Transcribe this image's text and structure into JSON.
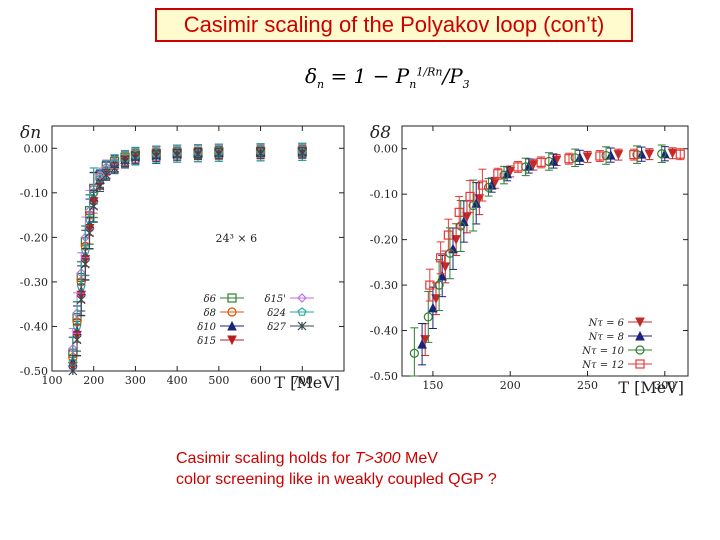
{
  "slide": {
    "title": "Casimir scaling of the Polyakov loop (con’t)",
    "formula": {
      "lhs": "δn",
      "text": "δ",
      "sub_n": "n",
      "eq": " = 1 − P",
      "sup": "1/Rn",
      "tail": "/P",
      "sub_3": "3"
    },
    "note_line1_prefix": "Casimir scaling holds for ",
    "note_line1_em": "T>300",
    "note_line1_suffix": " MeV",
    "note_line2": " color screening like in weakly coupled QGP ?"
  },
  "colors": {
    "title_red": "#cc0000",
    "title_bg": "#fffbcf"
  },
  "chart_data": [
    {
      "type": "scatter",
      "ylabel": "δn",
      "xlabel": "T [MeV]",
      "annotation": "24³ × 6",
      "xlim": [
        100,
        800
      ],
      "ylim": [
        -0.5,
        0.05
      ],
      "xticks": [
        100,
        200,
        300,
        400,
        500,
        600,
        700
      ],
      "xtick_labels": [
        "100",
        "200",
        "300",
        "400",
        "500",
        "600",
        "700"
      ],
      "yticks": [
        0.0,
        -0.1,
        -0.2,
        -0.3,
        -0.4,
        -0.5
      ],
      "ytick_labels": [
        "0.00",
        "-0.10",
        "-0.20",
        "-0.30",
        "-0.40",
        "-0.50"
      ],
      "legend_position": "bottom-right",
      "series": [
        {
          "name": "δ6",
          "color": "#2e7d32",
          "marker": "square",
          "x": [
            150,
            160,
            170,
            180,
            190,
            200,
            215,
            230,
            250,
            275,
            300,
            350,
            400,
            450,
            500,
            600,
            700
          ],
          "y": [
            -0.46,
            -0.38,
            -0.29,
            -0.21,
            -0.14,
            -0.09,
            -0.06,
            -0.04,
            -0.03,
            -0.02,
            -0.015,
            -0.012,
            -0.01,
            -0.01,
            -0.008,
            -0.007,
            -0.006
          ]
        },
        {
          "name": "δ8",
          "color": "#e65100",
          "marker": "circle",
          "x": [
            150,
            160,
            170,
            180,
            190,
            200,
            215,
            230,
            250,
            275,
            300,
            350,
            400,
            450,
            500,
            600,
            700
          ],
          "y": [
            -0.47,
            -0.39,
            -0.3,
            -0.22,
            -0.15,
            -0.1,
            -0.065,
            -0.045,
            -0.032,
            -0.022,
            -0.016,
            -0.013,
            -0.011,
            -0.01,
            -0.009,
            -0.008,
            -0.007
          ]
        },
        {
          "name": "δ10",
          "color": "#1a237e",
          "marker": "triangle-up",
          "x": [
            150,
            160,
            170,
            180,
            190,
            200,
            215,
            230,
            250,
            275,
            300,
            350,
            400,
            450,
            500,
            600,
            700
          ],
          "y": [
            -0.48,
            -0.41,
            -0.32,
            -0.24,
            -0.17,
            -0.11,
            -0.07,
            -0.05,
            -0.035,
            -0.025,
            -0.018,
            -0.015,
            -0.012,
            -0.011,
            -0.01,
            -0.009,
            -0.008
          ]
        },
        {
          "name": "δ15",
          "color": "#b71c1c",
          "marker": "triangle-down",
          "x": [
            150,
            160,
            170,
            180,
            190,
            200,
            215,
            230,
            250,
            275,
            300,
            350,
            400,
            450,
            500,
            600,
            700
          ],
          "y": [
            -0.49,
            -0.42,
            -0.33,
            -0.25,
            -0.18,
            -0.12,
            -0.08,
            -0.055,
            -0.04,
            -0.028,
            -0.02,
            -0.016,
            -0.014,
            -0.012,
            -0.011,
            -0.01,
            -0.009
          ]
        },
        {
          "name": "δ15'",
          "color": "#c070e0",
          "marker": "diamond",
          "x": [
            150,
            160,
            170,
            180,
            190,
            200,
            215,
            230,
            250,
            275,
            300,
            350,
            400,
            450,
            500,
            600,
            700
          ],
          "y": [
            -0.45,
            -0.37,
            -0.28,
            -0.2,
            -0.14,
            -0.09,
            -0.06,
            -0.042,
            -0.03,
            -0.022,
            -0.016,
            -0.013,
            -0.011,
            -0.01,
            -0.009,
            -0.008,
            -0.007
          ]
        },
        {
          "name": "δ24",
          "color": "#26a69a",
          "marker": "pentagon",
          "x": [
            150,
            160,
            170,
            180,
            190,
            200,
            215,
            230,
            250,
            275,
            300,
            350,
            400,
            450,
            500,
            600,
            700
          ],
          "y": [
            -0.48,
            -0.4,
            -0.31,
            -0.23,
            -0.16,
            -0.1,
            -0.068,
            -0.048,
            -0.034,
            -0.024,
            -0.017,
            -0.014,
            -0.012,
            -0.011,
            -0.01,
            -0.009,
            -0.008
          ]
        },
        {
          "name": "δ27",
          "color": "#37474f",
          "marker": "star",
          "x": [
            150,
            160,
            170,
            180,
            190,
            200,
            215,
            230,
            250,
            275,
            300,
            350,
            400,
            450,
            500,
            600,
            700
          ],
          "y": [
            -0.5,
            -0.43,
            -0.34,
            -0.26,
            -0.19,
            -0.13,
            -0.085,
            -0.06,
            -0.045,
            -0.03,
            -0.022,
            -0.018,
            -0.015,
            -0.013,
            -0.012,
            -0.011,
            -0.01
          ]
        }
      ]
    },
    {
      "type": "scatter",
      "ylabel": "δ8",
      "xlabel": "T [MeV]",
      "xlim": [
        130,
        315
      ],
      "ylim": [
        -0.5,
        0.05
      ],
      "xticks": [
        150,
        200,
        250,
        300
      ],
      "xtick_labels": [
        "150",
        "200",
        "250",
        "300"
      ],
      "yticks": [
        0.0,
        -0.1,
        -0.2,
        -0.3,
        -0.4,
        -0.5
      ],
      "ytick_labels": [
        "0.00",
        "-0.10",
        "-0.20",
        "-0.30",
        "-0.40",
        "-0.50"
      ],
      "legend_position": "bottom-right",
      "series": [
        {
          "name": "Nτ = 6",
          "color": "#c62828",
          "marker": "triangle-down",
          "x": [
            145,
            152,
            158,
            165,
            172,
            180,
            190,
            200,
            215,
            230,
            250,
            270,
            290,
            305
          ],
          "y": [
            -0.42,
            -0.33,
            -0.26,
            -0.2,
            -0.15,
            -0.11,
            -0.075,
            -0.05,
            -0.035,
            -0.025,
            -0.018,
            -0.013,
            -0.012,
            -0.01
          ]
        },
        {
          "name": "Nτ = 8",
          "color": "#1a237e",
          "marker": "triangle-up",
          "x": [
            143,
            150,
            156,
            163,
            170,
            178,
            188,
            198,
            212,
            228,
            245,
            265,
            285,
            300
          ],
          "y": [
            -0.43,
            -0.35,
            -0.28,
            -0.22,
            -0.16,
            -0.12,
            -0.08,
            -0.055,
            -0.038,
            -0.027,
            -0.019,
            -0.014,
            -0.012,
            -0.011
          ]
        },
        {
          "name": "Nτ = 10",
          "color": "#2e7d32",
          "marker": "circle",
          "x": [
            138,
            147,
            154,
            161,
            168,
            176,
            186,
            196,
            210,
            225,
            242,
            262,
            282,
            298
          ],
          "y": [
            -0.45,
            -0.37,
            -0.3,
            -0.23,
            -0.17,
            -0.125,
            -0.085,
            -0.058,
            -0.04,
            -0.028,
            -0.02,
            -0.015,
            -0.013,
            -0.011
          ]
        },
        {
          "name": "Nτ = 12",
          "color": "#e53935",
          "marker": "square",
          "x": [
            148,
            155,
            160,
            167,
            174,
            182,
            192,
            205,
            220,
            238,
            258,
            280,
            310
          ],
          "y": [
            -0.3,
            -0.24,
            -0.19,
            -0.14,
            -0.105,
            -0.08,
            -0.055,
            -0.04,
            -0.03,
            -0.022,
            -0.016,
            -0.013,
            -0.012
          ]
        }
      ]
    }
  ]
}
